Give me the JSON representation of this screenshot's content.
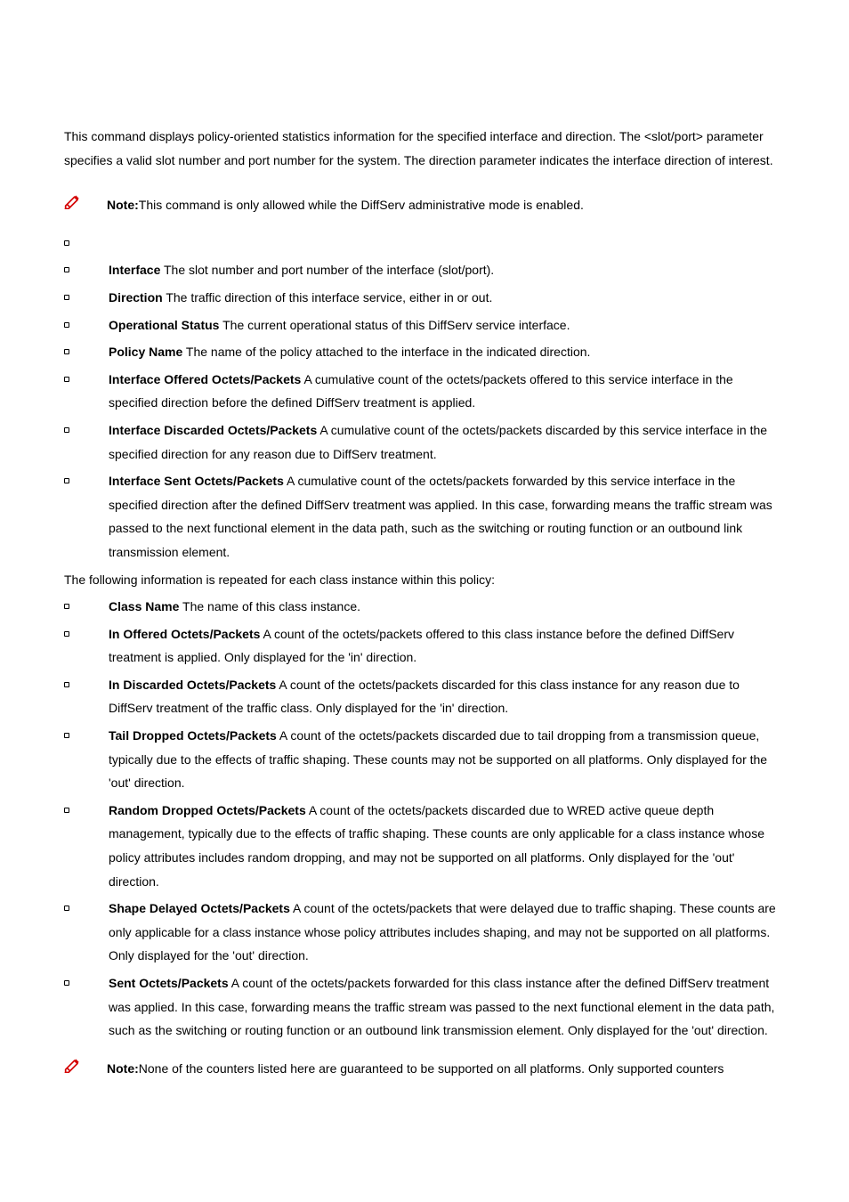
{
  "intro": "This command displays policy-oriented statistics information for the specified interface and direction. The <slot/port> parameter specifies a valid slot number and port number for the system. The direction parameter indicates the interface direction of interest.",
  "note1_label": "Note:",
  "note1_text": "This command is only allowed while the DiffServ administrative mode is enabled.",
  "fields": [
    {
      "term": "",
      "desc": ""
    },
    {
      "term": "Interface",
      "desc": " The slot number and port number of the interface (slot/port)."
    },
    {
      "term": "Direction",
      "desc": " The traffic direction of this interface service, either in or out."
    },
    {
      "term": "Operational Status",
      "desc": " The current operational status of this DiffServ service interface."
    },
    {
      "term": "Policy Name",
      "desc": " The name of the policy attached to the interface in the indicated direction."
    },
    {
      "term": "Interface Offered Octets/Packets",
      "desc": " A cumulative count of the octets/packets offered to this service interface in the specified direction before the defined DiffServ treatment is applied."
    },
    {
      "term": "Interface Discarded Octets/Packets",
      "desc": " A cumulative count of the octets/packets discarded by this service interface in the specified direction for any reason due to DiffServ treatment."
    },
    {
      "term": "Interface Sent Octets/Packets",
      "desc": " A cumulative count of the octets/packets forwarded by this service interface in the specified direction after the defined DiffServ treatment was applied. In this case, forwarding means the traffic stream was passed to the next functional element in the data path, such as the switching or routing function or an outbound link transmission element."
    }
  ],
  "repeat_text": "The following information is repeated for each class instance within this policy:",
  "class_fields": [
    {
      "term": "Class Name",
      "desc": " The name of this class instance."
    },
    {
      "term": "In Offered Octets/Packets",
      "desc": " A count of the octets/packets offered to this class instance before the defined DiffServ treatment is applied. Only displayed for the 'in' direction."
    },
    {
      "term": "In Discarded Octets/Packets",
      "desc": " A count of the octets/packets discarded for this class instance for any reason due to DiffServ treatment of the traffic class. Only displayed for the 'in' direction."
    },
    {
      "term": "Tail Dropped Octets/Packets",
      "desc": " A count of the octets/packets discarded due to tail dropping from a transmission queue, typically due to the effects of traffic shaping. These counts may not be supported on all platforms. Only displayed for the 'out' direction."
    },
    {
      "term": "Random Dropped Octets/Packets",
      "desc": " A count of the octets/packets discarded due to WRED active queue depth management, typically due to the effects of traffic shaping. These counts are only applicable for a class instance whose policy attributes includes random dropping, and may not be supported on all platforms. Only displayed for the 'out' direction."
    },
    {
      "term": "Shape Delayed Octets/Packets",
      "desc": " A count of the octets/packets that were delayed due to traffic shaping. These counts are only applicable for a class instance whose policy attributes includes shaping, and may not be supported on all platforms. Only displayed for the 'out' direction."
    },
    {
      "term": "Sent Octets/Packets",
      "desc": " A count of the octets/packets forwarded for this class instance after the defined DiffServ treatment was applied. In this case, forwarding means the traffic stream was passed to the next functional element in the data path, such as the switching or routing function or an outbound link transmission element. Only displayed for the 'out' direction."
    }
  ],
  "note2_label": "Note:",
  "note2_text": "None of the counters listed here are guaranteed to be supported on all platforms. Only supported counters"
}
